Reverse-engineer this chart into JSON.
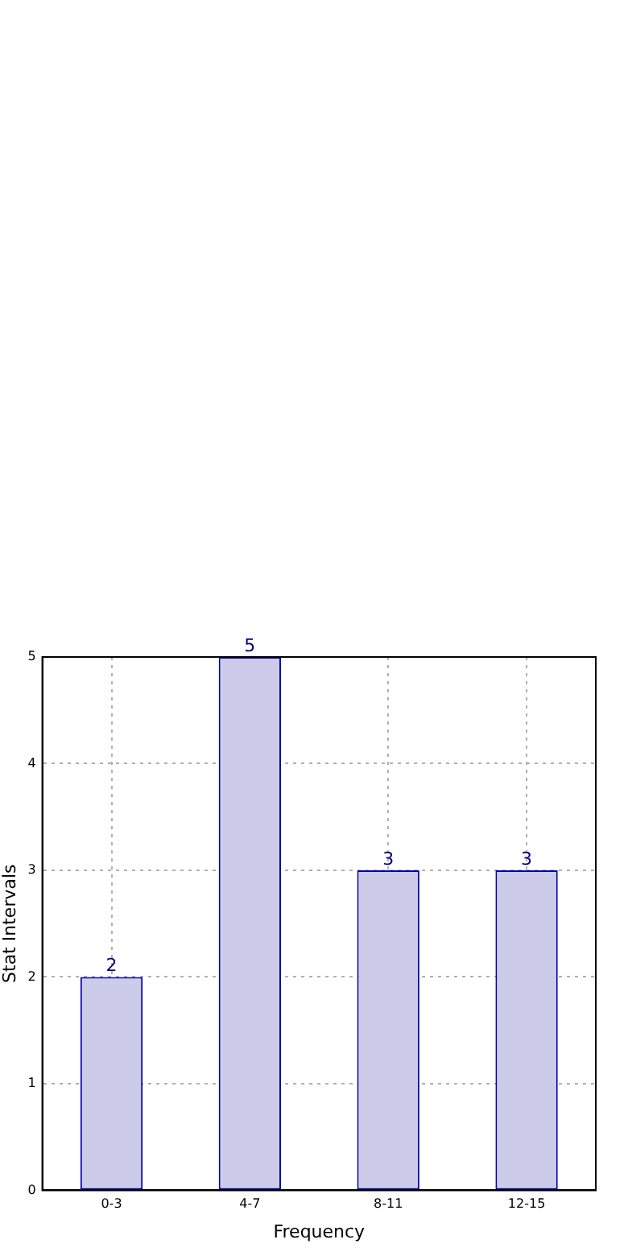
{
  "chart_data": {
    "type": "bar",
    "categories": [
      "0-3",
      "4-7",
      "8-11",
      "12-15"
    ],
    "values": [
      2,
      5,
      3,
      3
    ],
    "color": "#ccccea",
    "xlabel": "Frequency",
    "ylabel": "Stat Intervals",
    "ylim": [
      0,
      5
    ],
    "yticks": [
      0,
      1,
      2,
      3,
      4,
      5
    ],
    "grid": true,
    "data_labels": true
  }
}
